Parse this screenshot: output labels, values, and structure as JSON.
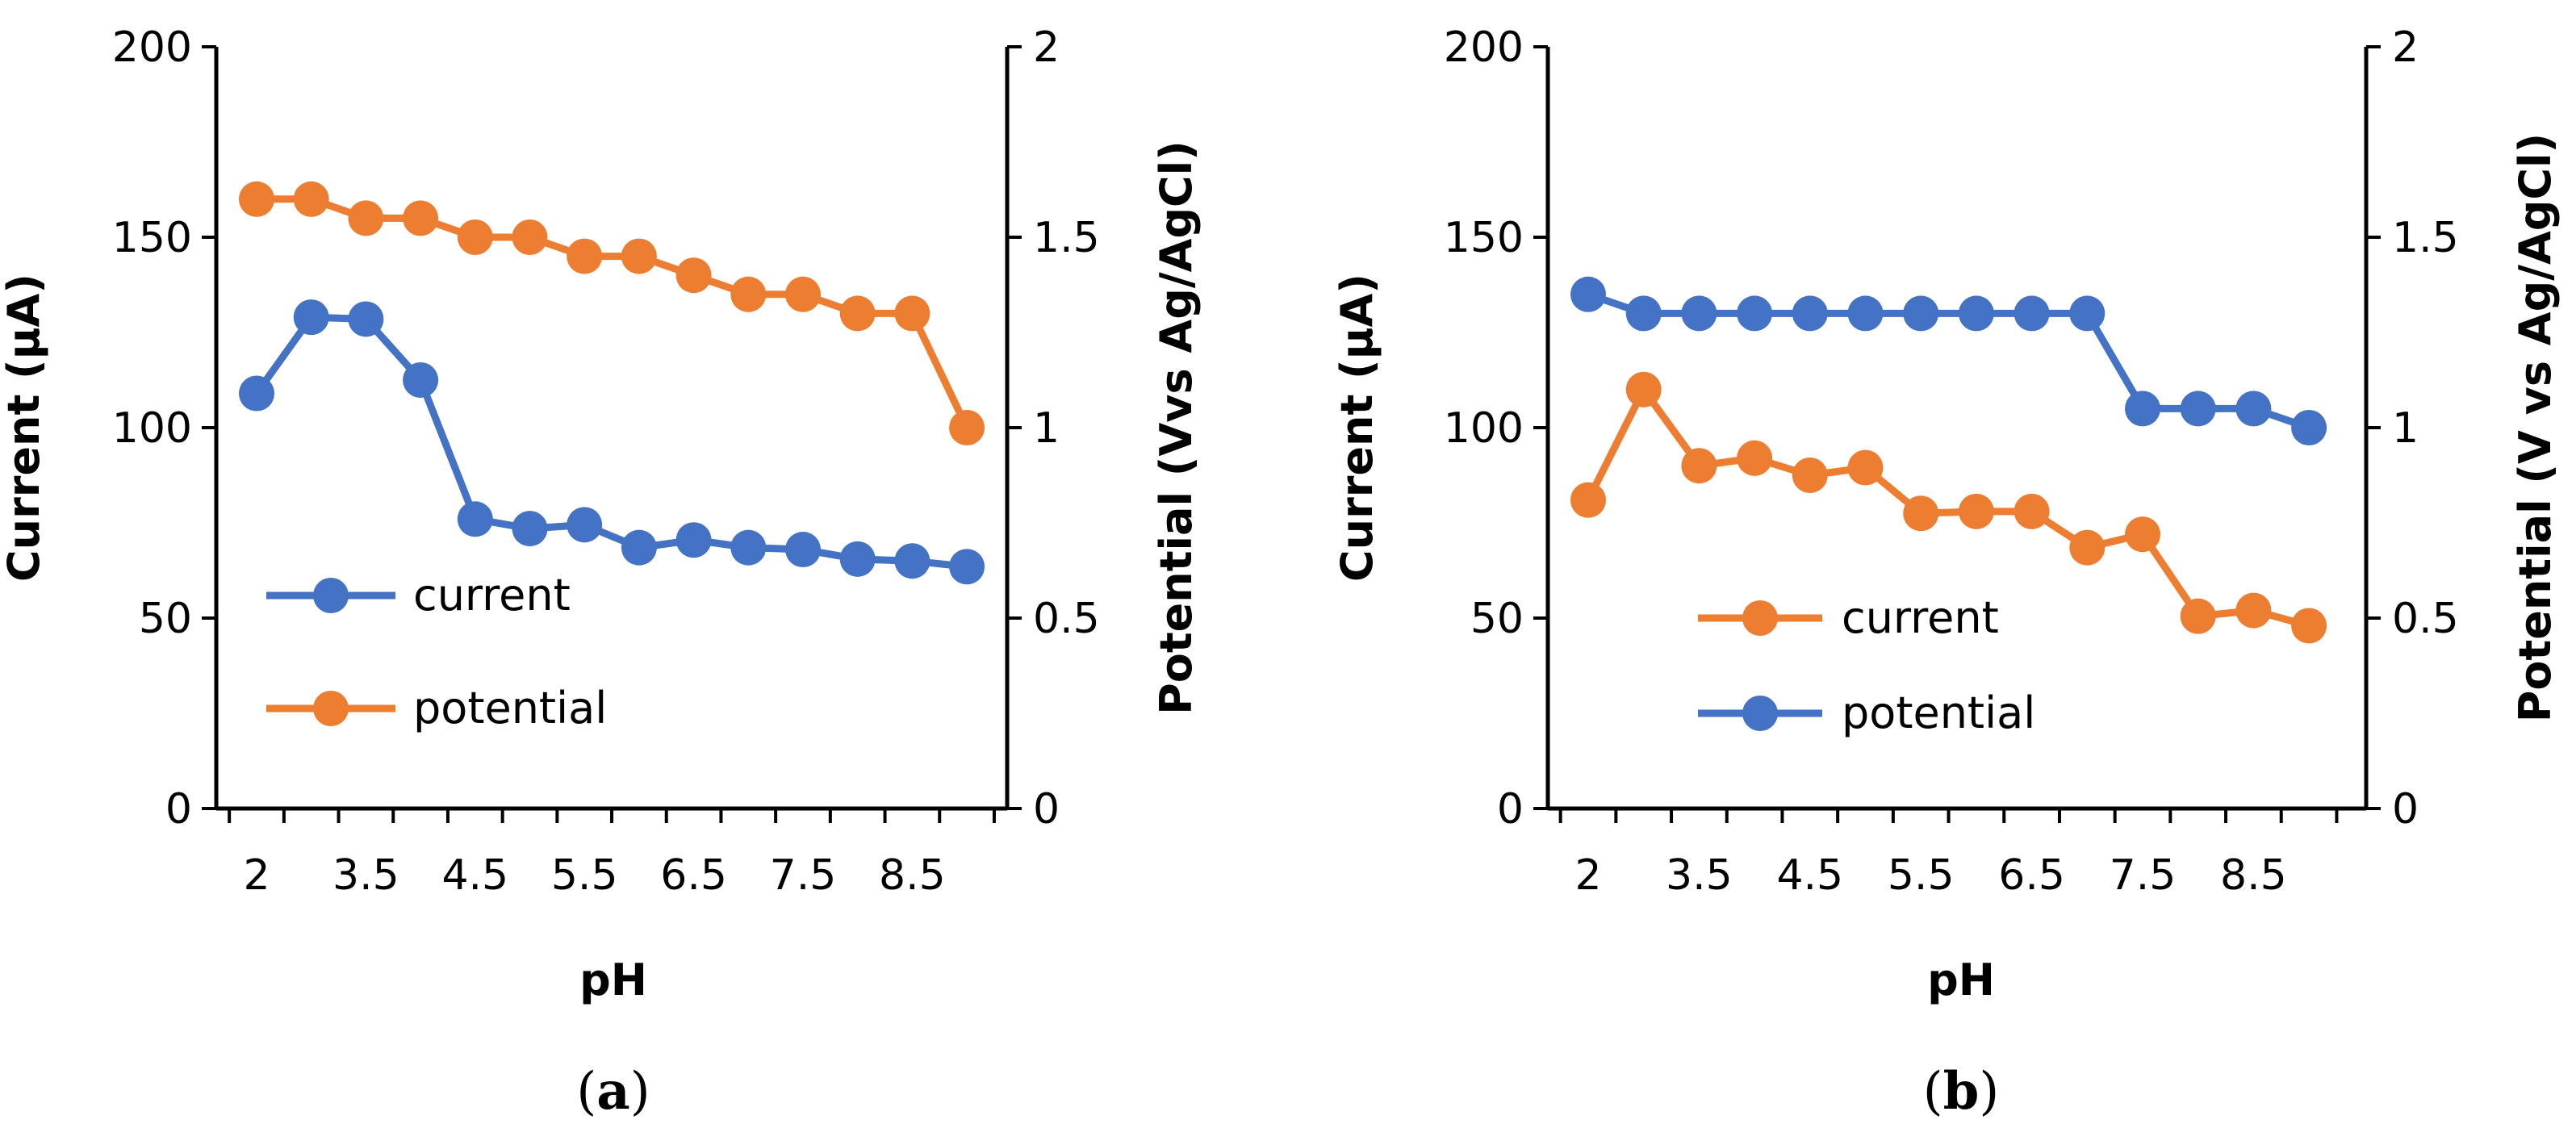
{
  "colors": {
    "blue": "#4472C4",
    "orange": "#ED7D31"
  },
  "chart_data": [
    {
      "type": "line",
      "panel_label": "(a)",
      "panel_letter": "a",
      "xlabel": "pH",
      "ylabel_left": "Current (µA)",
      "ylabel_right": "Potential (Vvs Ag/AgCl)",
      "ylim_left": [
        0,
        200
      ],
      "ylim_right": [
        0,
        2
      ],
      "yticks_left": [
        "0",
        "50",
        "100",
        "150",
        "200"
      ],
      "yticks_right": [
        "0",
        "0.5",
        "1",
        "1.5",
        "2"
      ],
      "xtick_labels": [
        "2",
        "3.5",
        "4.5",
        "5.5",
        "6.5",
        "7.5",
        "8.5"
      ],
      "x": [
        2,
        3,
        3.5,
        4,
        4.5,
        5,
        5.5,
        6,
        6.5,
        7,
        7.5,
        8,
        8.5,
        9
      ],
      "series": [
        {
          "name": "current",
          "axis": "left",
          "color": "#4472C4",
          "values": [
            109,
            129,
            128.5,
            112.5,
            76,
            73.5,
            74.5,
            68.5,
            70.5,
            68.5,
            68,
            65.5,
            65,
            63.5
          ]
        },
        {
          "name": "potential",
          "axis": "right",
          "color": "#ED7D31",
          "values": [
            1.6,
            1.6,
            1.55,
            1.55,
            1.5,
            1.5,
            1.45,
            1.45,
            1.4,
            1.35,
            1.35,
            1.3,
            1.3,
            1.0
          ]
        }
      ],
      "legend_order": [
        "current",
        "potential"
      ]
    },
    {
      "type": "line",
      "panel_label": "(b)",
      "panel_letter": "b",
      "xlabel": "pH",
      "ylabel_left": "Current (µA)",
      "ylabel_right": "Potential (V vs Ag/AgCl)",
      "ylim_left": [
        0,
        200
      ],
      "ylim_right": [
        0,
        2
      ],
      "yticks_left": [
        "0",
        "50",
        "100",
        "150",
        "200"
      ],
      "yticks_right": [
        "0",
        "0.5",
        "1",
        "1.5",
        "2"
      ],
      "xtick_labels": [
        "2",
        "3.5",
        "4.5",
        "5.5",
        "6.5",
        "7.5",
        "8.5"
      ],
      "x": [
        2,
        3,
        3.5,
        4,
        4.5,
        5,
        5.5,
        6,
        6.5,
        7,
        7.5,
        8,
        8.5,
        9
      ],
      "series": [
        {
          "name": "current",
          "axis": "left",
          "color": "#ED7D31",
          "values": [
            81,
            110,
            90,
            92,
            87.5,
            89.5,
            77.5,
            78,
            78,
            68.5,
            72,
            50.5,
            52,
            48
          ]
        },
        {
          "name": "potential",
          "axis": "right",
          "color": "#4472C4",
          "values": [
            1.35,
            1.3,
            1.3,
            1.3,
            1.3,
            1.3,
            1.3,
            1.3,
            1.3,
            1.3,
            1.05,
            1.05,
            1.05,
            1.0
          ]
        }
      ],
      "legend_order": [
        "current",
        "potential"
      ]
    }
  ]
}
